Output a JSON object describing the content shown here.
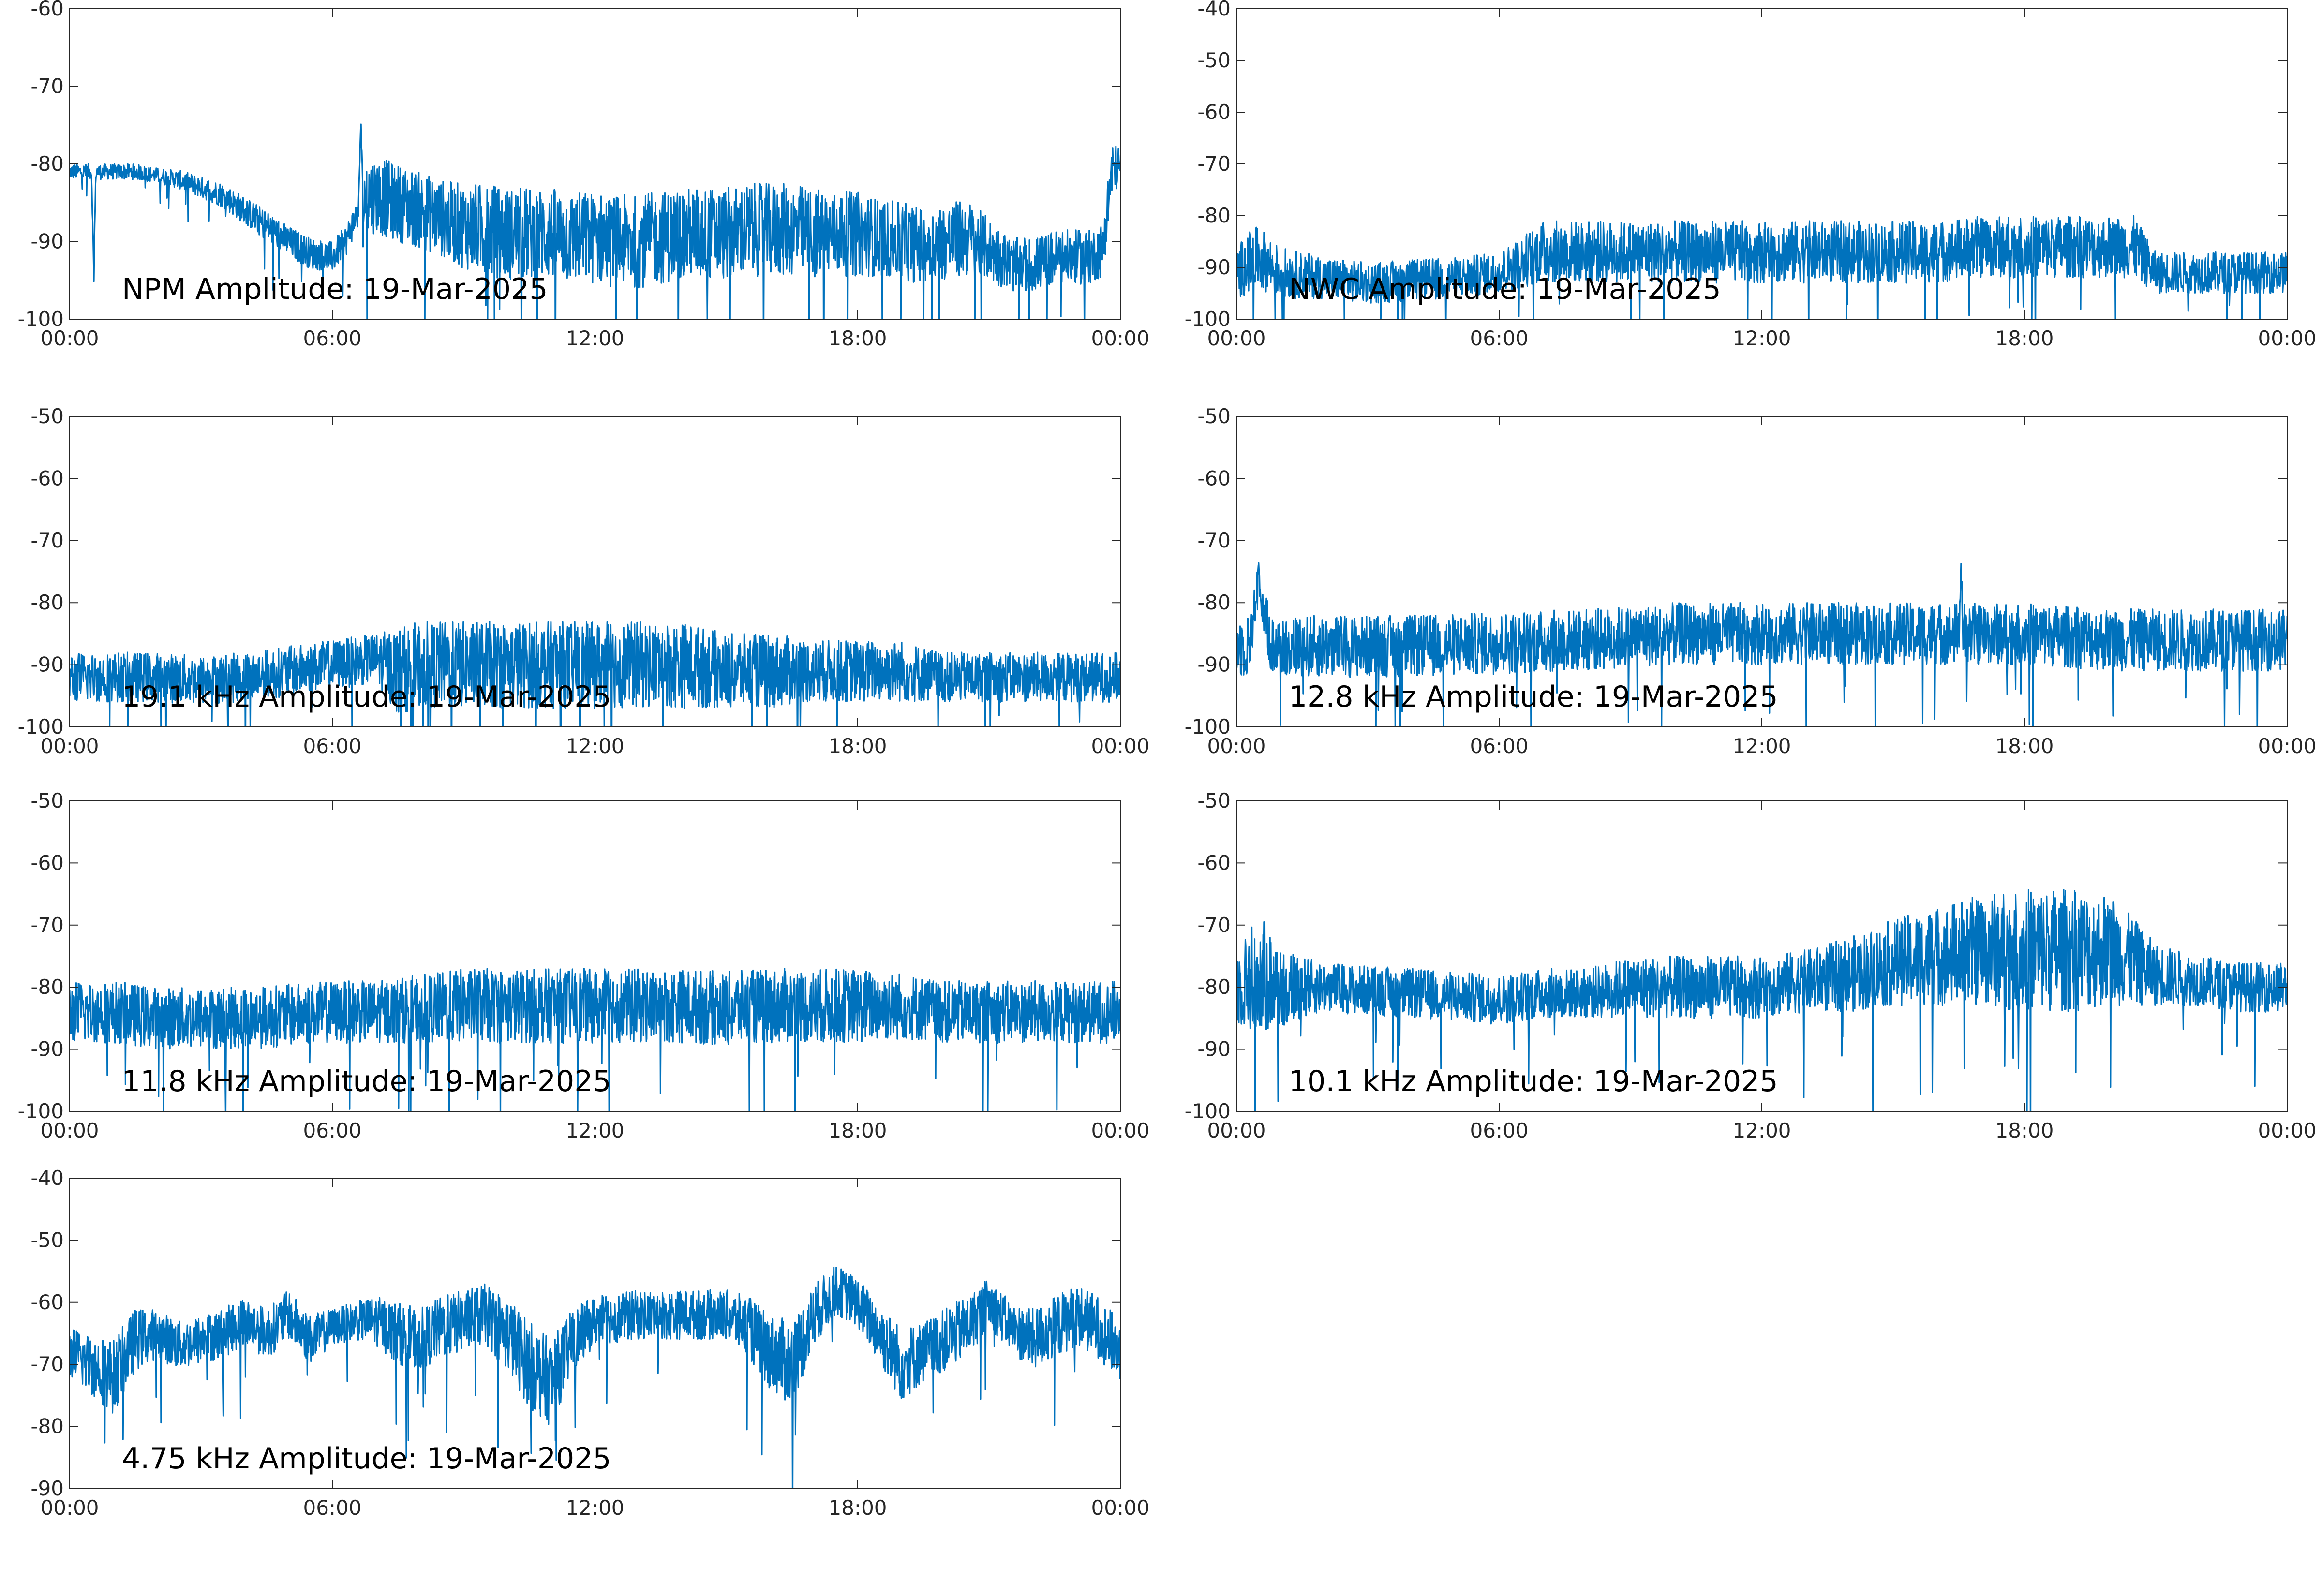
{
  "figure": {
    "background": "#ffffff",
    "line_color": "#0072bd",
    "axis_color": "#262626"
  },
  "chart_data": [
    {
      "id": "npm",
      "type": "line",
      "annotation": "NPM Amplitude: 19-Mar-2025",
      "xlabel": "",
      "ylabel": "",
      "x_tick_labels": [
        "00:00",
        "06:00",
        "12:00",
        "18:00",
        "00:00"
      ],
      "x_tick_hours": [
        0,
        6,
        12,
        18,
        24
      ],
      "y_ticks": [
        -100,
        -90,
        -80,
        -70,
        -60
      ],
      "ylim": [
        -100,
        -60
      ],
      "grid": false,
      "series": [
        {
          "x_hours": [
            0,
            0.5,
            0.55,
            0.6,
            1,
            1.5,
            2,
            2.5,
            3,
            3.5,
            4,
            4.5,
            5,
            5.5,
            6,
            6.3,
            6.6,
            6.65,
            6.7,
            6.75,
            7,
            7.5,
            8,
            8.5,
            9,
            9.5,
            10,
            10.5,
            11,
            11.5,
            12,
            12.5,
            13,
            13.5,
            14,
            14.5,
            15,
            15.5,
            16,
            16.5,
            17,
            17.5,
            18,
            18.5,
            19,
            19.5,
            20,
            20.5,
            21,
            21.5,
            22,
            22.5,
            23,
            23.3,
            23.6,
            23.8,
            24
          ],
          "center": [
            -81,
            -81,
            -94,
            -81,
            -81,
            -81,
            -81.5,
            -82,
            -83,
            -84,
            -86,
            -88,
            -90,
            -91.5,
            -92,
            -90,
            -86,
            -74,
            -86,
            -84,
            -84,
            -85,
            -86,
            -87,
            -88,
            -88.5,
            -89,
            -89,
            -89,
            -89.5,
            -89.5,
            -90,
            -90,
            -89.5,
            -89,
            -89,
            -89,
            -88.5,
            -88.5,
            -88.5,
            -89,
            -89,
            -89,
            -89.5,
            -90,
            -90.5,
            -90,
            -89.5,
            -91,
            -93,
            -93,
            -92,
            -92,
            -92,
            -91,
            -81,
            -80
          ],
          "spread": [
            1,
            1,
            1,
            1,
            1,
            1,
            1,
            1.2,
            1.4,
            1.6,
            1.8,
            2,
            2,
            2,
            2,
            2,
            2,
            1,
            3,
            5,
            5,
            5,
            5,
            5,
            5.5,
            6,
            6,
            6,
            6,
            6,
            6,
            6,
            6,
            6,
            6,
            6,
            6,
            6,
            6,
            6,
            6,
            5.5,
            5.5,
            5,
            5,
            5,
            5,
            5,
            4,
            3.5,
            3.5,
            3.5,
            3.5,
            3.5,
            3.5,
            4,
            2
          ]
        }
      ]
    },
    {
      "id": "nwc",
      "type": "line",
      "annotation": "NWC Amplitude: 19-Mar-2025",
      "xlabel": "",
      "ylabel": "",
      "x_tick_labels": [
        "00:00",
        "06:00",
        "12:00",
        "18:00",
        "00:00"
      ],
      "x_tick_hours": [
        0,
        6,
        12,
        18,
        24
      ],
      "y_ticks": [
        -100,
        -90,
        -80,
        -70,
        -60,
        -50,
        -40
      ],
      "ylim": [
        -100,
        -40
      ],
      "grid": false,
      "series": [
        {
          "x_hours": [
            0,
            0.3,
            0.5,
            1,
            2,
            3,
            4,
            5,
            6,
            6.5,
            7,
            8,
            9,
            10,
            11,
            12,
            13,
            14,
            15,
            16,
            17,
            17.5,
            18,
            19,
            20,
            20.5,
            21,
            22,
            23,
            24
          ],
          "center": [
            -91,
            -89,
            -88,
            -91,
            -92,
            -93,
            -92.5,
            -92,
            -91,
            -89,
            -87,
            -87,
            -87,
            -87,
            -87,
            -87,
            -87,
            -87,
            -87,
            -87,
            -86,
            -86,
            -86,
            -86,
            -86,
            -86,
            -91,
            -91,
            -91,
            -91
          ],
          "spread": [
            5,
            6,
            6,
            5,
            4,
            4,
            4,
            4,
            4,
            5,
            6,
            6,
            6,
            6,
            6,
            6,
            6,
            6,
            6,
            6,
            6,
            6,
            6,
            6,
            6,
            6,
            4,
            4,
            4,
            4
          ]
        }
      ]
    },
    {
      "id": "19.1khz",
      "type": "line",
      "annotation": "19.1 kHz Amplitude: 19-Mar-2025",
      "xlabel": "",
      "ylabel": "",
      "x_tick_labels": [
        "00:00",
        "06:00",
        "12:00",
        "18:00",
        "00:00"
      ],
      "x_tick_hours": [
        0,
        6,
        12,
        18,
        24
      ],
      "y_ticks": [
        -100,
        -90,
        -80,
        -70,
        -60,
        -50
      ],
      "ylim": [
        -100,
        -50
      ],
      "grid": false,
      "series": [
        {
          "x_hours": [
            0,
            1,
            2,
            3,
            4,
            5,
            6,
            7,
            7.5,
            8,
            9,
            10,
            11,
            12,
            13,
            14,
            15,
            16,
            17,
            18,
            19,
            20,
            21,
            22,
            23,
            24
          ],
          "center": [
            -92,
            -92,
            -92,
            -92.5,
            -92,
            -91,
            -90,
            -89,
            -91,
            -90,
            -90,
            -90,
            -90,
            -90,
            -90,
            -90,
            -91,
            -91,
            -91,
            -91,
            -91,
            -92,
            -92,
            -92,
            -92,
            -92
          ],
          "spread": [
            4,
            4,
            4,
            4,
            4,
            4,
            4,
            4,
            7,
            7,
            7,
            7,
            7,
            7,
            7,
            7,
            6,
            6,
            5,
            5,
            5,
            4,
            4,
            4,
            4,
            4
          ]
        }
      ]
    },
    {
      "id": "12.8khz",
      "type": "line",
      "annotation": "12.8 kHz Amplitude: 19-Mar-2025",
      "xlabel": "",
      "ylabel": "",
      "x_tick_labels": [
        "00:00",
        "06:00",
        "12:00",
        "18:00",
        "00:00"
      ],
      "x_tick_hours": [
        0,
        6,
        12,
        18,
        24
      ],
      "y_ticks": [
        -100,
        -90,
        -80,
        -70,
        -60,
        -50
      ],
      "ylim": [
        -100,
        -50
      ],
      "grid": false,
      "series": [
        {
          "x_hours": [
            0,
            0.3,
            0.45,
            0.5,
            0.55,
            0.8,
            2,
            4,
            6,
            8,
            10,
            12,
            14,
            16,
            16.5,
            16.55,
            16.6,
            17,
            18,
            20,
            22,
            24
          ],
          "center": [
            -87,
            -87,
            -79,
            -73,
            -79,
            -87,
            -87,
            -87,
            -86.5,
            -86,
            -85,
            -85,
            -85,
            -85,
            -85,
            -74,
            -85,
            -85,
            -85,
            -86,
            -86,
            -86
          ],
          "spread": [
            5,
            5,
            3,
            1,
            3,
            5,
            5,
            5,
            5,
            5,
            5,
            5,
            5,
            5,
            5,
            1,
            5,
            5,
            5,
            5,
            5,
            5
          ]
        }
      ]
    },
    {
      "id": "11.8khz",
      "type": "line",
      "annotation": "11.8 kHz Amplitude: 19-Mar-2025",
      "xlabel": "",
      "ylabel": "",
      "x_tick_labels": [
        "00:00",
        "06:00",
        "12:00",
        "18:00",
        "00:00"
      ],
      "x_tick_hours": [
        0,
        6,
        12,
        18,
        24
      ],
      "y_ticks": [
        -100,
        -90,
        -80,
        -70,
        -60,
        -50
      ],
      "ylim": [
        -100,
        -50
      ],
      "grid": false,
      "series": [
        {
          "x_hours": [
            0,
            1,
            2,
            3,
            4,
            5,
            6,
            7,
            8,
            9,
            10,
            11,
            12,
            13,
            14,
            15,
            16,
            17,
            18,
            19,
            20,
            21,
            22,
            23,
            24
          ],
          "center": [
            -84,
            -84,
            -85,
            -85,
            -85,
            -84.5,
            -84,
            -84,
            -83.5,
            -83,
            -83,
            -83,
            -83,
            -83,
            -83,
            -83.5,
            -83,
            -83,
            -83,
            -83,
            -84,
            -84,
            -84,
            -84,
            -84
          ],
          "spread": [
            5,
            5,
            5,
            5,
            5,
            5,
            5,
            5,
            5.5,
            6,
            6,
            6,
            6,
            6,
            6,
            6,
            6,
            6,
            6,
            5.5,
            5,
            5,
            5,
            5,
            5
          ]
        }
      ]
    },
    {
      "id": "10.1khz",
      "type": "line",
      "annotation": "10.1 kHz Amplitude: 19-Mar-2025",
      "xlabel": "",
      "ylabel": "",
      "x_tick_labels": [
        "00:00",
        "06:00",
        "12:00",
        "18:00",
        "00:00"
      ],
      "x_tick_hours": [
        0,
        6,
        12,
        18,
        24
      ],
      "y_ticks": [
        -100,
        -90,
        -80,
        -70,
        -60,
        -50
      ],
      "ylim": [
        -100,
        -50
      ],
      "grid": false,
      "series": [
        {
          "x_hours": [
            0,
            0.5,
            1,
            1.5,
            2,
            4,
            6,
            7,
            8,
            9,
            10,
            11,
            12,
            13,
            14,
            15,
            16,
            17,
            18,
            19,
            20,
            21,
            22,
            23,
            24
          ],
          "center": [
            -80,
            -78,
            -80,
            -80,
            -80,
            -81,
            -82,
            -81,
            -81,
            -80,
            -80,
            -80,
            -80,
            -79,
            -78,
            -76,
            -75,
            -74,
            -74,
            -74,
            -74,
            -78,
            -79,
            -80,
            -80
          ],
          "spread": [
            6,
            10,
            7,
            5,
            4,
            4,
            4,
            4,
            4,
            5,
            5,
            5,
            5,
            5,
            6,
            7,
            8,
            9,
            10,
            10,
            9,
            5,
            4,
            4,
            4
          ]
        }
      ]
    },
    {
      "id": "4.75khz",
      "type": "line",
      "annotation": "4.75 kHz Amplitude: 19-Mar-2025",
      "xlabel": "",
      "ylabel": "",
      "x_tick_labels": [
        "00:00",
        "06:00",
        "12:00",
        "18:00",
        "00:00"
      ],
      "x_tick_hours": [
        0,
        6,
        12,
        18,
        24
      ],
      "y_ticks": [
        -90,
        -80,
        -70,
        -60,
        -50,
        -40
      ],
      "ylim": [
        -90,
        -40
      ],
      "grid": false,
      "series": [
        {
          "x_hours": [
            0,
            0.5,
            1,
            1.5,
            2,
            2.5,
            3,
            3.5,
            4,
            4.5,
            5,
            5.5,
            6,
            6.5,
            7,
            7.5,
            8,
            8.5,
            9,
            9.5,
            10,
            10.5,
            11,
            11.5,
            12,
            13,
            14,
            15,
            15.5,
            16,
            16.5,
            17,
            17.5,
            18,
            18.5,
            19,
            19.5,
            20,
            20.5,
            21,
            21.5,
            22,
            22.5,
            23,
            23.5,
            24
          ],
          "center": [
            -68,
            -70,
            -72,
            -66,
            -65,
            -67,
            -66,
            -65,
            -63,
            -65,
            -62,
            -66,
            -64,
            -63,
            -63,
            -65,
            -66,
            -64,
            -63,
            -62,
            -65,
            -70,
            -73,
            -66,
            -63,
            -62,
            -62,
            -62,
            -64,
            -68,
            -70,
            -62,
            -58,
            -60,
            -65,
            -70,
            -68,
            -66,
            -64,
            -60,
            -64,
            -66,
            -64,
            -62,
            -64,
            -68
          ],
          "spread": [
            4,
            5,
            6,
            5,
            4,
            4,
            4,
            4,
            4,
            4,
            4,
            4,
            3,
            3,
            4,
            5,
            5,
            5,
            5,
            5,
            6,
            7,
            7,
            5,
            4,
            4,
            4,
            4,
            5,
            6,
            7,
            5,
            4,
            4,
            5,
            6,
            5,
            5,
            5,
            4,
            4,
            5,
            5,
            5,
            5,
            5
          ]
        }
      ]
    }
  ]
}
